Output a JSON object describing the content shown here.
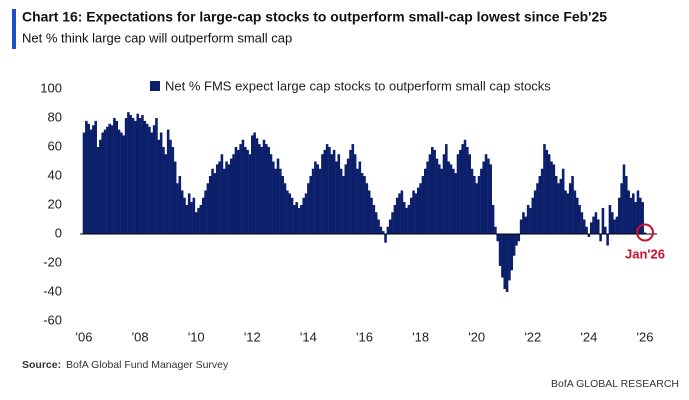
{
  "chart_data": {
    "type": "bar",
    "title": "Chart 16: Expectations for large-cap stocks to outperform small-cap lowest since Feb'25",
    "subtitle": "Net % think large cap will outperform small cap",
    "source_label": "Source:",
    "source": "BofA Global Fund Manager Survey",
    "branding": "BofA GLOBAL RESEARCH",
    "annotation": "Jan'26",
    "categories": [
      "'06",
      null,
      null,
      null,
      null,
      null,
      null,
      null,
      null,
      null,
      null,
      null,
      null,
      null,
      null,
      null,
      null,
      null,
      null,
      null,
      null,
      null,
      null,
      null,
      "'08",
      null,
      null,
      null,
      null,
      null,
      null,
      null,
      null,
      null,
      null,
      null,
      null,
      null,
      null,
      null,
      null,
      null,
      null,
      null,
      null,
      null,
      null,
      null,
      "'10",
      null,
      null,
      null,
      null,
      null,
      null,
      null,
      null,
      null,
      null,
      null,
      null,
      null,
      null,
      null,
      null,
      null,
      null,
      null,
      null,
      null,
      null,
      null,
      "'12",
      null,
      null,
      null,
      null,
      null,
      null,
      null,
      null,
      null,
      null,
      null,
      null,
      null,
      null,
      null,
      null,
      null,
      null,
      null,
      null,
      null,
      null,
      null,
      "'14",
      null,
      null,
      null,
      null,
      null,
      null,
      null,
      null,
      null,
      null,
      null,
      null,
      null,
      null,
      null,
      null,
      null,
      null,
      null,
      null,
      null,
      null,
      null,
      "'16",
      null,
      null,
      null,
      null,
      null,
      null,
      null,
      null,
      null,
      null,
      null,
      null,
      null,
      null,
      null,
      null,
      null,
      null,
      null,
      null,
      null,
      null,
      null,
      "'18",
      null,
      null,
      null,
      null,
      null,
      null,
      null,
      null,
      null,
      null,
      null,
      null,
      null,
      null,
      null,
      null,
      null,
      null,
      null,
      null,
      null,
      null,
      null,
      "'20",
      null,
      null,
      null,
      null,
      null,
      null,
      null,
      null,
      null,
      null,
      null,
      null,
      null,
      null,
      null,
      null,
      null,
      null,
      null,
      null,
      null,
      null,
      null,
      "'22",
      null,
      null,
      null,
      null,
      null,
      null,
      null,
      null,
      null,
      null,
      null,
      null,
      null,
      null,
      null,
      null,
      null,
      null,
      null,
      null,
      null,
      null,
      null,
      "'24",
      null,
      null,
      null,
      null,
      null,
      null,
      null,
      null,
      null,
      null,
      null,
      null,
      null,
      null,
      null,
      null,
      null,
      null,
      null,
      null,
      null,
      null,
      null,
      "'26"
    ],
    "series": [
      {
        "name": "Net % FMS expect large cap stocks to outperform small cap stocks",
        "color": "#0c1f6b",
        "values": [
          70,
          78,
          76,
          72,
          75,
          78,
          60,
          65,
          70,
          72,
          74,
          76,
          75,
          80,
          78,
          72,
          70,
          68,
          80,
          84,
          82,
          80,
          78,
          83,
          80,
          82,
          78,
          76,
          74,
          70,
          75,
          80,
          65,
          70,
          60,
          55,
          72,
          65,
          60,
          50,
          35,
          40,
          30,
          25,
          20,
          28,
          22,
          25,
          15,
          18,
          20,
          25,
          30,
          35,
          40,
          45,
          42,
          48,
          50,
          55,
          45,
          50,
          48,
          52,
          55,
          60,
          58,
          62,
          65,
          60,
          58,
          55,
          68,
          70,
          66,
          62,
          60,
          65,
          62,
          60,
          55,
          50,
          45,
          52,
          45,
          40,
          35,
          30,
          28,
          25,
          20,
          22,
          18,
          20,
          25,
          28,
          35,
          40,
          45,
          50,
          48,
          45,
          55,
          58,
          62,
          60,
          55,
          58,
          50,
          55,
          45,
          40,
          48,
          52,
          58,
          62,
          55,
          45,
          50,
          42,
          40,
          35,
          30,
          25,
          20,
          15,
          10,
          5,
          2,
          -6,
          5,
          10,
          15,
          20,
          25,
          28,
          30,
          22,
          18,
          20,
          25,
          30,
          28,
          32,
          35,
          40,
          45,
          50,
          55,
          60,
          58,
          52,
          48,
          45,
          55,
          62,
          50,
          48,
          45,
          42,
          55,
          58,
          62,
          65,
          60,
          55,
          45,
          40,
          35,
          40,
          45,
          50,
          55,
          52,
          48,
          20,
          5,
          -5,
          -22,
          -30,
          -38,
          -40,
          -32,
          -25,
          -15,
          -8,
          -5,
          10,
          15,
          12,
          20,
          18,
          25,
          30,
          35,
          40,
          45,
          62,
          58,
          55,
          50,
          48,
          40,
          35,
          38,
          45,
          30,
          28,
          35,
          40,
          30,
          25,
          20,
          15,
          10,
          5,
          -2,
          8,
          12,
          15,
          10,
          -5,
          18,
          5,
          -8,
          20,
          15,
          10,
          12,
          25,
          35,
          48,
          40,
          30,
          25,
          28,
          22,
          30,
          25,
          22,
          1
        ]
      }
    ],
    "ylim": [
      -60,
      100
    ],
    "yticks": [
      -60,
      -40,
      -20,
      0,
      20,
      40,
      60,
      80,
      100
    ],
    "annotation_color": "#c8102e"
  }
}
